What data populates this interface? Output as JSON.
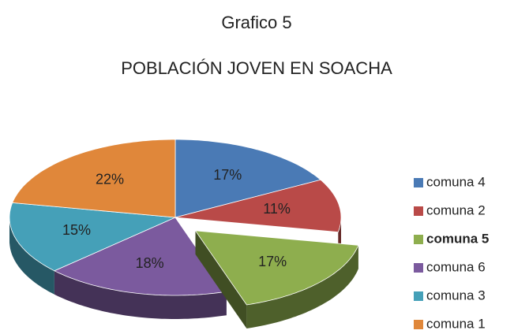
{
  "chart_data": {
    "type": "pie",
    "title": "Grafico 5",
    "subtitle": "POBLACIÓN JOVEN  EN SOACHA",
    "categories": [
      "comuna 4",
      "comuna 2",
      "comuna 5",
      "comuna 6",
      "comuna 3",
      "comuna 1"
    ],
    "values": [
      17,
      11,
      17,
      18,
      15,
      22
    ],
    "value_labels": [
      "17%",
      "11%",
      "17%",
      "18%",
      "15%",
      "22%"
    ],
    "colors": [
      "#4a7ab5",
      "#b94a48",
      "#8eae4e",
      "#7b5a9e",
      "#45a0b8",
      "#e0873a"
    ],
    "highlight_index": 2,
    "legend": "right"
  }
}
